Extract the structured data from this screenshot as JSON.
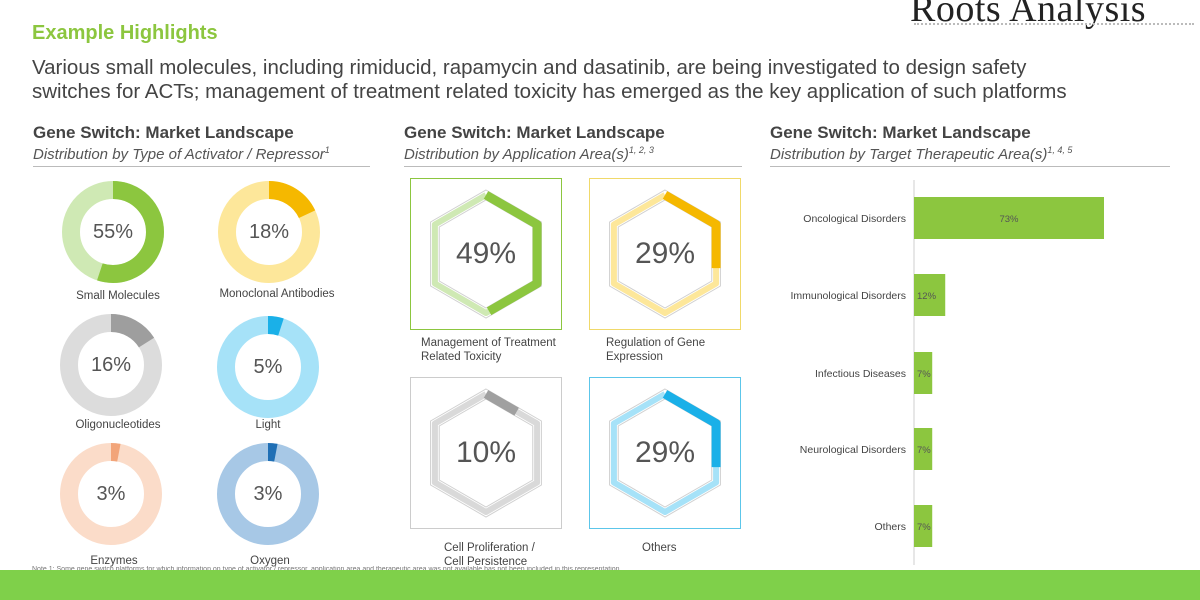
{
  "brand": {
    "logo_text": "Roots Analysis"
  },
  "header": {
    "section_title": "Example Highlights",
    "subtitle_line1": "Various small molecules, including rimiducid, rapamycin and dasatinib, are being investigated to design safety",
    "subtitle_line2": "switches for ACTs; management of treatment related toxicity has emerged as the key application of such platforms"
  },
  "panels": [
    {
      "title": "Gene Switch: Market Landscape",
      "subtitle": "Distribution by Type of Activator / Repressor",
      "sup": "1"
    },
    {
      "title": "Gene Switch: Market Landscape",
      "subtitle": "Distribution by Application Area(s)",
      "sup": "1, 2, 3"
    },
    {
      "title": "Gene Switch: Market Landscape",
      "subtitle": "Distribution by Target Therapeutic Area(s)",
      "sup": "1, 4, 5"
    }
  ],
  "chart_data": [
    {
      "type": "pie",
      "subtitle": "Distribution by Type of Activator / Repressor",
      "slices": [
        {
          "label": "Small Molecules",
          "value": 55,
          "display": "55%",
          "color": "#8cc63f",
          "track": "#cfe9b4"
        },
        {
          "label": "Monoclonal Antibodies",
          "value": 18,
          "display": "18%",
          "color": "#f5b800",
          "track": "#fde79a"
        },
        {
          "label": "Oligonucleotides",
          "value": 16,
          "display": "16%",
          "color": "#9e9e9e",
          "track": "#dcdcdc"
        },
        {
          "label": "Light",
          "value": 5,
          "display": "5%",
          "color": "#1ab0e8",
          "track": "#a6e2f8"
        },
        {
          "label": "Enzymes",
          "value": 3,
          "display": "3%",
          "color": "#f2a57a",
          "track": "#fbdcc9"
        },
        {
          "label": "Oxygen",
          "value": 3,
          "display": "3%",
          "color": "#1f6fb5",
          "track": "#a7c8e6"
        }
      ]
    },
    {
      "type": "pie",
      "subtitle": "Distribution by Application Area(s)",
      "slices": [
        {
          "label_line1": "Management of Treatment",
          "label_line2": "Related Toxicity",
          "value": 49,
          "display": "49%",
          "color": "#8cc63f",
          "track": "#cfe9b4",
          "border": "#8cc63f"
        },
        {
          "label_line1": "Regulation of Gene",
          "label_line2": "Expression",
          "value": 29,
          "display": "29%",
          "color": "#f5b800",
          "track": "#fde79a",
          "border": "#f0d96a"
        },
        {
          "label_line1": "Cell Proliferation /",
          "label_line2": "Cell Persistence",
          "value": 10,
          "display": "10%",
          "color": "#a0a0a0",
          "track": "#d9d9d9",
          "border": "#cccccc"
        },
        {
          "label_line1": "Others",
          "label_line2": "",
          "value": 29,
          "display": "29%",
          "color": "#1ab0e8",
          "track": "#a6e2f8",
          "border": "#5cc6ea"
        }
      ]
    },
    {
      "type": "bar",
      "orientation": "horizontal",
      "subtitle": "Distribution by Target Therapeutic Area(s)",
      "categories": [
        "Oncological Disorders",
        "Immunological Disorders",
        "Infectious Diseases",
        "Neurological Disorders",
        "Others"
      ],
      "values": [
        73,
        12,
        7,
        7,
        7
      ],
      "labels": [
        "73%",
        "12%",
        "7%",
        "7%",
        "7%"
      ],
      "xlim": [
        0,
        73
      ],
      "bar_color": "#8cc63f"
    }
  ],
  "footer": {
    "note": "Note 1: Some gene switch platforms for which information on type of activator / repressor, application area and therapeutic area was not available has not been included in this representation"
  }
}
